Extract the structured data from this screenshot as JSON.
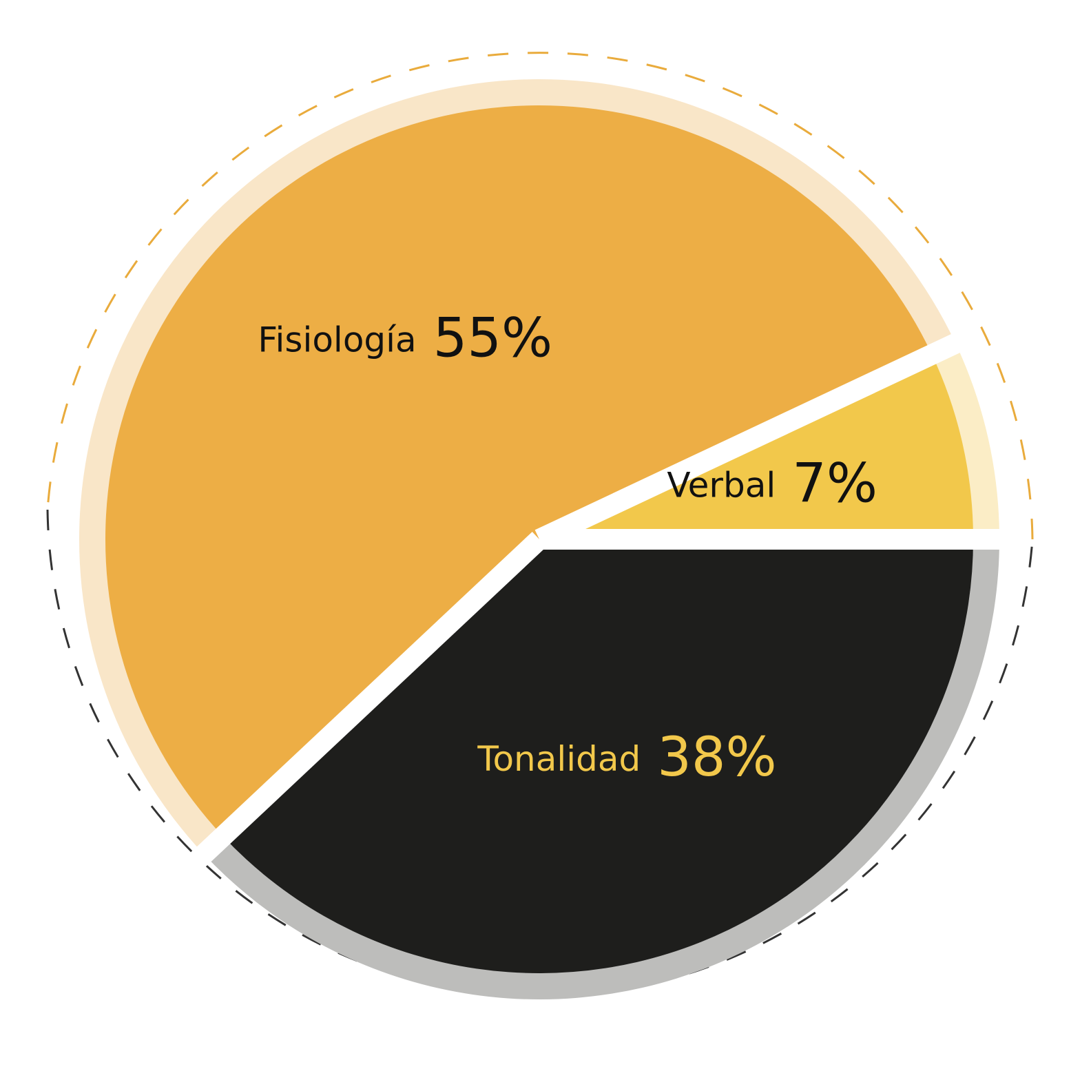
{
  "chart_data": {
    "type": "pie",
    "categories": [
      "Verbal",
      "Fisiología",
      "Tonalidad"
    ],
    "values": [
      7,
      55,
      38
    ],
    "value_labels": [
      "7%",
      "55%",
      "38%"
    ],
    "colors": [
      "#f2c84b",
      "#edae45",
      "#1e1e1c"
    ],
    "ring_colors": [
      "#fbedc6",
      "#f9e6c8",
      "#bdbdbb"
    ],
    "label_colors": [
      "#111111",
      "#111111",
      "#f2c84b"
    ]
  }
}
